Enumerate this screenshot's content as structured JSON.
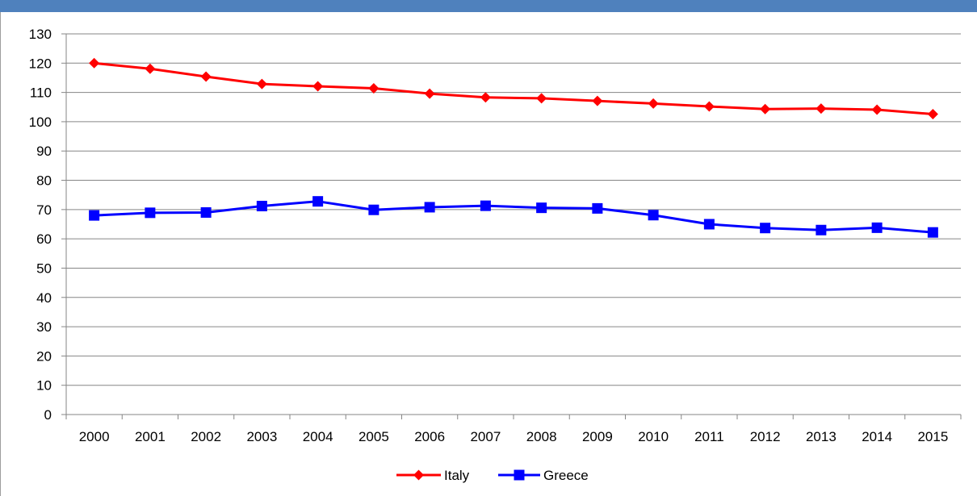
{
  "title": "",
  "colors": {
    "banner": "#4f81bd",
    "grid": "#868686",
    "axis": "#868686"
  },
  "chart_data": {
    "type": "line",
    "title": "",
    "xlabel": "",
    "ylabel": "",
    "x": [
      "2000",
      "2001",
      "2002",
      "2003",
      "2004",
      "2005",
      "2006",
      "2007",
      "2008",
      "2009",
      "2010",
      "2011",
      "2012",
      "2013",
      "2014",
      "2015"
    ],
    "ylim": [
      0,
      130
    ],
    "ytick_step": 10,
    "grid": true,
    "legend_position": "bottom",
    "series": [
      {
        "name": "Italy",
        "color": "#ff0000",
        "marker": "diamond",
        "values": [
          120.0,
          118.1,
          115.4,
          112.9,
          112.1,
          111.4,
          109.6,
          108.3,
          108.0,
          107.1,
          106.2,
          105.2,
          104.3,
          104.5,
          104.1,
          102.6
        ]
      },
      {
        "name": "Greece",
        "color": "#0000ff",
        "marker": "square",
        "values": [
          68.0,
          68.9,
          69.0,
          71.2,
          72.8,
          69.9,
          70.8,
          71.3,
          70.6,
          70.4,
          68.1,
          65.0,
          63.7,
          63.0,
          63.8,
          62.2
        ]
      }
    ]
  }
}
